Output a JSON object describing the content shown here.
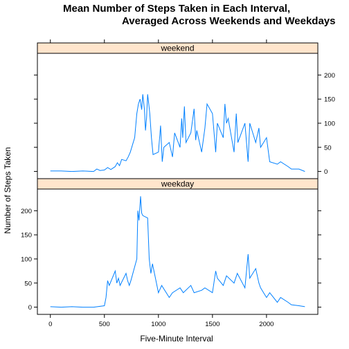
{
  "chart_data": {
    "type": "line",
    "title_line1": "Mean Number of Steps Taken in Each Interval,",
    "title_line2": "Averaged Across Weekends and Weekdays",
    "xlabel": "Five-Minute Interval",
    "ylabel": "Number of Steps Taken",
    "xlim": [
      -120,
      2475
    ],
    "ylim": [
      -15,
      245
    ],
    "xticks": [
      0,
      500,
      1000,
      1500,
      2000
    ],
    "yticks": [
      0,
      50,
      100,
      150,
      200
    ],
    "line_color": "#0080ff",
    "strip_color": "#ffe5cc",
    "panels": [
      {
        "strip": "weekend",
        "y_axis_side": "right",
        "x": [
          0,
          100,
          200,
          300,
          400,
          430,
          460,
          500,
          530,
          560,
          600,
          620,
          640,
          660,
          700,
          720,
          740,
          760,
          780,
          800,
          815,
          830,
          845,
          855,
          870,
          880,
          890,
          900,
          910,
          920,
          935,
          950,
          1000,
          1020,
          1035,
          1050,
          1100,
          1130,
          1150,
          1200,
          1215,
          1225,
          1240,
          1255,
          1300,
          1330,
          1345,
          1355,
          1400,
          1430,
          1450,
          1500,
          1530,
          1545,
          1600,
          1615,
          1630,
          1645,
          1700,
          1720,
          1735,
          1800,
          1830,
          1845,
          1900,
          1930,
          1945,
          2000,
          2030,
          2100,
          2130,
          2200,
          2230,
          2300,
          2355
        ],
        "y": [
          1,
          1,
          0,
          1,
          0,
          5,
          2,
          3,
          8,
          4,
          10,
          18,
          12,
          25,
          22,
          30,
          40,
          55,
          70,
          120,
          140,
          150,
          128,
          160,
          130,
          85,
          110,
          160,
          140,
          120,
          70,
          35,
          40,
          95,
          20,
          50,
          60,
          30,
          80,
          50,
          110,
          70,
          135,
          60,
          80,
          130,
          65,
          85,
          40,
          90,
          140,
          120,
          40,
          100,
          70,
          140,
          100,
          110,
          40,
          120,
          60,
          100,
          20,
          100,
          60,
          90,
          50,
          70,
          20,
          15,
          20,
          10,
          5,
          5,
          0
        ]
      },
      {
        "strip": "weekday",
        "y_axis_side": "left",
        "x": [
          0,
          100,
          200,
          300,
          400,
          500,
          515,
          530,
          545,
          600,
          615,
          630,
          645,
          700,
          715,
          730,
          745,
          800,
          810,
          820,
          835,
          845,
          855,
          900,
          915,
          930,
          945,
          1000,
          1030,
          1100,
          1130,
          1200,
          1230,
          1300,
          1330,
          1400,
          1430,
          1500,
          1530,
          1545,
          1600,
          1630,
          1700,
          1730,
          1800,
          1830,
          1845,
          1900,
          1930,
          1945,
          2000,
          2030,
          2100,
          2130,
          2200,
          2230,
          2300,
          2355
        ],
        "y": [
          1,
          0,
          1,
          0,
          0,
          3,
          20,
          55,
          45,
          75,
          50,
          60,
          45,
          70,
          55,
          45,
          55,
          100,
          200,
          180,
          230,
          195,
          190,
          185,
          100,
          70,
          90,
          30,
          45,
          20,
          30,
          40,
          30,
          45,
          30,
          35,
          40,
          30,
          75,
          60,
          45,
          65,
          50,
          70,
          40,
          110,
          60,
          80,
          50,
          40,
          20,
          30,
          10,
          20,
          10,
          5,
          3,
          1
        ]
      }
    ]
  }
}
